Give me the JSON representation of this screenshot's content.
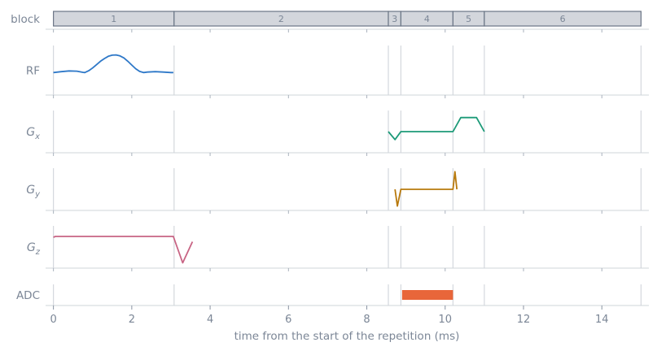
{
  "chart_data": {
    "type": "line",
    "xlabel": "time from the start of the repetition (ms)",
    "xlim": [
      -0.2,
      15.2
    ],
    "x_ticks": [
      0,
      2,
      4,
      6,
      8,
      10,
      12,
      14
    ],
    "block_boundaries": [
      0,
      3.08,
      8.55,
      8.87,
      10.2,
      11.0,
      15.0
    ],
    "rows": [
      {
        "key": "block",
        "label": "block",
        "type": "blocks",
        "blocks": [
          {
            "label": "1",
            "start": 0,
            "end": 3.08
          },
          {
            "label": "2",
            "start": 3.08,
            "end": 8.55
          },
          {
            "label": "3",
            "start": 8.55,
            "end": 8.87
          },
          {
            "label": "4",
            "start": 8.87,
            "end": 10.2
          },
          {
            "label": "5",
            "start": 10.2,
            "end": 11.0
          },
          {
            "label": "6",
            "start": 11.0,
            "end": 15.0
          }
        ]
      },
      {
        "key": "rf",
        "label": "RF",
        "subscript": "",
        "type": "line",
        "color": "#2e78c8",
        "ylim": [
          -1,
          1.2
        ],
        "x": [
          0,
          0.2,
          0.4,
          0.6,
          0.75,
          0.8,
          0.9,
          1.0,
          1.1,
          1.2,
          1.3,
          1.4,
          1.5,
          1.6,
          1.7,
          1.8,
          1.9,
          2.0,
          2.1,
          2.2,
          2.3,
          2.4,
          2.6,
          2.8,
          3.0,
          3.06
        ],
        "y": [
          0,
          0.04,
          0.07,
          0.06,
          0.01,
          0.0,
          0.08,
          0.2,
          0.35,
          0.5,
          0.62,
          0.72,
          0.77,
          0.78,
          0.74,
          0.65,
          0.5,
          0.33,
          0.17,
          0.05,
          0.0,
          0.02,
          0.04,
          0.02,
          0.0,
          0.0
        ]
      },
      {
        "key": "gx",
        "label": "G",
        "subscript": "x",
        "type": "line",
        "color": "#1c9a78",
        "ylim": [
          -1.2,
          1.2
        ],
        "x": [
          8.55,
          8.72,
          8.87,
          10.2,
          10.4,
          10.8,
          11.0
        ],
        "y": [
          0,
          -0.45,
          0,
          0,
          0.8,
          0.8,
          0
        ]
      },
      {
        "key": "gy",
        "label": "G",
        "subscript": "y",
        "type": "line",
        "color": "#b8790c",
        "ylim": [
          -1.2,
          1.2
        ],
        "x": [
          8.72,
          8.78,
          8.87,
          10.2,
          10.25,
          10.3
        ],
        "y": [
          0,
          -0.95,
          0,
          0,
          1.0,
          0
        ]
      },
      {
        "key": "gz",
        "label": "G",
        "subscript": "z",
        "type": "line",
        "color": "#c86484",
        "ylim": [
          -1.2,
          1.2
        ],
        "x": [
          0,
          0.05,
          3.06,
          3.3,
          3.55
        ],
        "y": [
          0.55,
          0.6,
          0.6,
          -0.9,
          0.3
        ]
      },
      {
        "key": "adc",
        "label": "ADC",
        "subscript": "",
        "type": "bar",
        "color": "#e8663a",
        "start": 8.9,
        "end": 10.2
      }
    ]
  }
}
